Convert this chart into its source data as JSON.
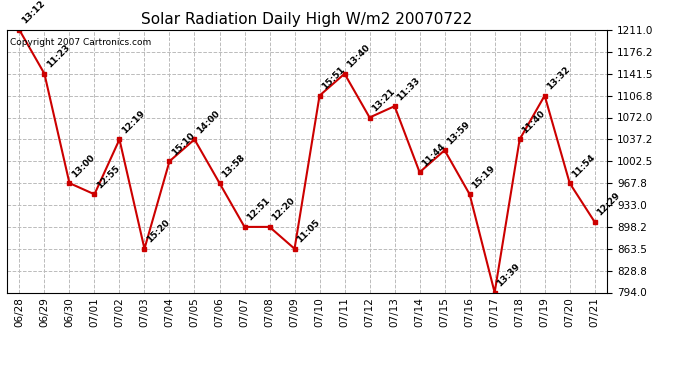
{
  "title": "Solar Radiation Daily High W/m2 20070722",
  "copyright": "Copyright 2007 Cartronics.com",
  "dates": [
    "06/28",
    "06/29",
    "06/30",
    "07/01",
    "07/02",
    "07/03",
    "07/04",
    "07/05",
    "07/06",
    "07/07",
    "07/08",
    "07/09",
    "07/10",
    "07/11",
    "07/12",
    "07/13",
    "07/14",
    "07/15",
    "07/16",
    "07/17",
    "07/18",
    "07/19",
    "07/20",
    "07/21"
  ],
  "values": [
    1211.0,
    1141.5,
    967.8,
    950.0,
    1037.2,
    863.5,
    1002.5,
    1037.2,
    967.8,
    898.2,
    898.2,
    863.5,
    1106.8,
    1141.5,
    1072.0,
    1090.0,
    985.0,
    1020.0,
    950.0,
    794.0,
    1037.2,
    1106.8,
    967.8,
    906.0
  ],
  "time_labels": [
    "13:12",
    "11:23",
    "13:00",
    "12:55",
    "12:19",
    "15:20",
    "15:10",
    "14:00",
    "13:58",
    "12:51",
    "12:20",
    "11:05",
    "15:51",
    "13:40",
    "13:21",
    "11:33",
    "11:44",
    "13:59",
    "15:19",
    "13:39",
    "11:40",
    "13:32",
    "11:54",
    "12:29"
  ],
  "ylim": [
    794.0,
    1211.0
  ],
  "yticks": [
    794.0,
    828.8,
    863.5,
    898.2,
    933.0,
    967.8,
    1002.5,
    1037.2,
    1072.0,
    1106.8,
    1141.5,
    1176.2,
    1211.0
  ],
  "line_color": "#cc0000",
  "marker_color": "#cc0000",
  "bg_color": "#ffffff",
  "grid_color": "#bbbbbb",
  "title_fontsize": 11,
  "label_fontsize": 6.5,
  "tick_fontsize": 7.5,
  "copyright_fontsize": 6.5
}
